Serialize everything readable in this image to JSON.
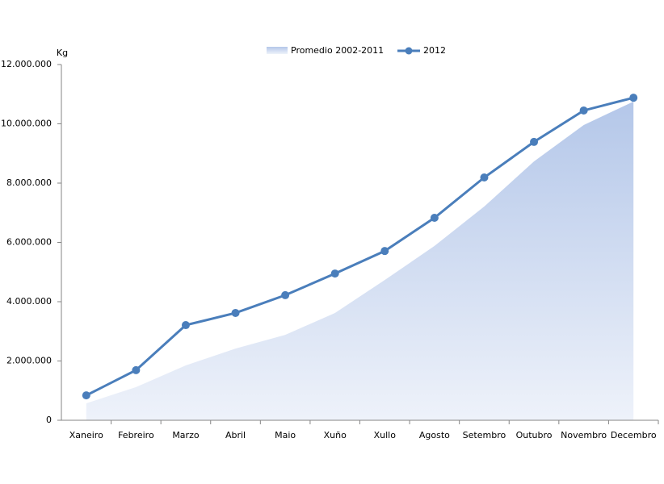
{
  "chart_data": {
    "type": "line",
    "y_label": "Kg",
    "categories": [
      "Xaneiro",
      "Febreiro",
      "Marzo",
      "Abril",
      "Maio",
      "Xuño",
      "Xullo",
      "Agosto",
      "Setembro",
      "Outubro",
      "Novembro",
      "Decembro"
    ],
    "series": [
      {
        "name": "Promedio 2002-2011",
        "kind": "area",
        "color": "#b4c7e9",
        "values": [
          570000,
          1120000,
          1850000,
          2420000,
          2880000,
          3620000,
          4730000,
          5880000,
          7210000,
          8730000,
          9960000,
          10750000
        ]
      },
      {
        "name": "2012",
        "kind": "line",
        "color": "#4a7ebb",
        "values": [
          840000,
          1690000,
          3210000,
          3620000,
          4220000,
          4950000,
          5710000,
          6830000,
          8190000,
          9390000,
          10450000,
          10880000
        ]
      }
    ],
    "ylim": [
      0,
      12000000
    ],
    "yticks": [
      0,
      {
        "value": 2000000,
        "label": "2.000.000"
      },
      {
        "value": 4000000,
        "label": "4.000.000"
      },
      {
        "value": 6000000,
        "label": "6.000.000"
      },
      {
        "value": 8000000,
        "label": "8.000.000"
      },
      {
        "value": 10000000,
        "label": "10.000.000"
      },
      {
        "value": 12000000,
        "label": "12.000.000"
      }
    ],
    "legend": "top"
  }
}
